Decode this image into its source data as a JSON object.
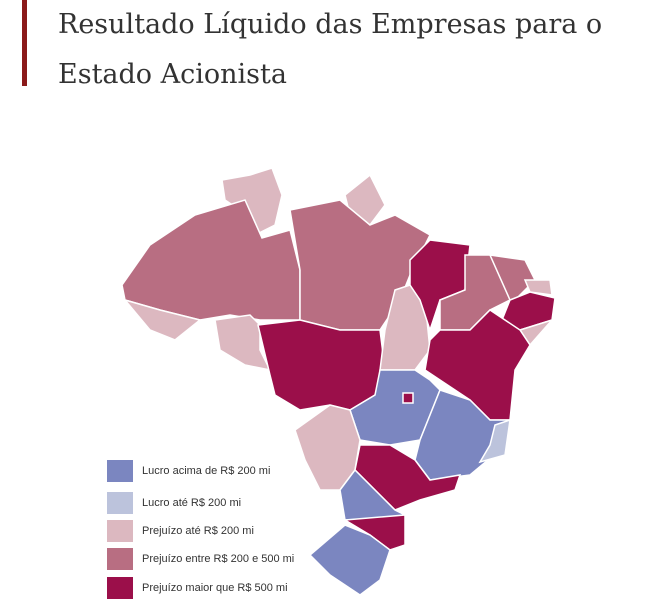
{
  "header": {
    "title": "Resultado Líquido das Empresas para o Estado Acionista"
  },
  "legend": {
    "items": [
      {
        "label": "Lucro acima de R$ 200 mi",
        "color": "#7b86c0"
      },
      {
        "label": "Lucro até R$ 200 mi",
        "color": "#bcc3dc"
      },
      {
        "label": "Prejuízo até R$ 200 mi",
        "color": "#dcb8c0"
      },
      {
        "label": "Prejuízo entre R$ 200 e 500 mi",
        "color": "#b86e82"
      },
      {
        "label": "Prejuízo maior que R$ 500 mi",
        "color": "#9b0f4a"
      }
    ]
  }
}
